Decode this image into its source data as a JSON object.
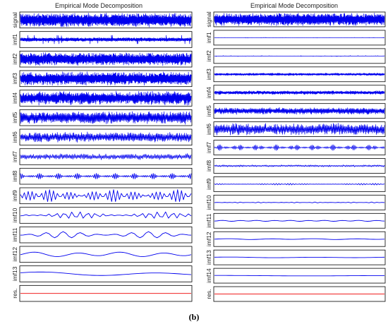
{
  "caption": "(b)",
  "colors": {
    "trace": "#0000ee",
    "residual": "#ee0000",
    "frame": "#000000"
  },
  "chart_data": [
    {
      "type": "line",
      "title": "Empirical Mode Decomposition",
      "rows": [
        {
          "label": "signal",
          "amplitude": 1.0,
          "cycles": 400,
          "envelope": "noise",
          "color": "trace"
        },
        {
          "label": "imf1",
          "amplitude": 0.45,
          "cycles": 360,
          "envelope": "spiky",
          "color": "trace"
        },
        {
          "label": "imf2",
          "amplitude": 0.95,
          "cycles": 320,
          "envelope": "noise",
          "color": "trace"
        },
        {
          "label": "imf3",
          "amplitude": 1.0,
          "cycles": 280,
          "envelope": "noise",
          "color": "trace"
        },
        {
          "label": "imf4",
          "amplitude": 1.0,
          "cycles": 240,
          "envelope": "noise",
          "color": "trace"
        },
        {
          "label": "imf5",
          "amplitude": 0.95,
          "cycles": 200,
          "envelope": "noise",
          "color": "trace"
        },
        {
          "label": "imf6",
          "amplitude": 0.75,
          "cycles": 160,
          "envelope": "noise",
          "color": "trace"
        },
        {
          "label": "imf7",
          "amplitude": 0.45,
          "cycles": 120,
          "envelope": "noise",
          "color": "trace"
        },
        {
          "label": "imf8",
          "amplitude": 0.4,
          "cycles": 90,
          "envelope": "burst",
          "color": "trace"
        },
        {
          "label": "imf9",
          "amplitude": 0.85,
          "cycles": 40,
          "envelope": "grow",
          "color": "trace"
        },
        {
          "label": "imf10",
          "amplitude": 0.5,
          "cycles": 22,
          "envelope": "wave",
          "color": "trace"
        },
        {
          "label": "imf11",
          "amplitude": 0.45,
          "cycles": 10,
          "envelope": "wave",
          "color": "trace"
        },
        {
          "label": "imf12",
          "amplitude": 0.25,
          "cycles": 4,
          "envelope": "smooth",
          "color": "trace"
        },
        {
          "label": "imf13",
          "amplitude": 0.2,
          "cycles": 1.5,
          "envelope": "smooth",
          "color": "trace"
        },
        {
          "label": "res.",
          "amplitude": 0.05,
          "cycles": 0.5,
          "envelope": "flat",
          "color": "residual"
        }
      ]
    },
    {
      "type": "line",
      "title": "Empirical Mode Decomposition",
      "rows": [
        {
          "label": "signal",
          "amplitude": 1.0,
          "cycles": 400,
          "envelope": "noise",
          "color": "trace"
        },
        {
          "label": "imf1",
          "amplitude": 0.05,
          "cycles": 360,
          "envelope": "sparse",
          "color": "trace"
        },
        {
          "label": "imf2",
          "amplitude": 0.08,
          "cycles": 320,
          "envelope": "sparse",
          "color": "trace"
        },
        {
          "label": "imf3",
          "amplitude": 0.2,
          "cycles": 280,
          "envelope": "noise",
          "color": "trace"
        },
        {
          "label": "imf4",
          "amplitude": 0.3,
          "cycles": 240,
          "envelope": "noise",
          "color": "trace"
        },
        {
          "label": "imf5",
          "amplitude": 0.55,
          "cycles": 200,
          "envelope": "noise",
          "color": "trace"
        },
        {
          "label": "imf6",
          "amplitude": 0.95,
          "cycles": 160,
          "envelope": "noise",
          "color": "trace"
        },
        {
          "label": "imf7",
          "amplitude": 0.45,
          "cycles": 120,
          "envelope": "burst",
          "color": "trace"
        },
        {
          "label": "imf8",
          "amplitude": 0.15,
          "cycles": 90,
          "envelope": "noise",
          "color": "trace"
        },
        {
          "label": "imf9",
          "amplitude": 0.12,
          "cycles": 60,
          "envelope": "wave",
          "color": "trace"
        },
        {
          "label": "imf10",
          "amplitude": 0.08,
          "cycles": 30,
          "envelope": "burst",
          "color": "trace"
        },
        {
          "label": "imf11",
          "amplitude": 0.06,
          "cycles": 10,
          "envelope": "smooth",
          "color": "trace"
        },
        {
          "label": "imf12",
          "amplitude": 0.05,
          "cycles": 4,
          "envelope": "smooth",
          "color": "trace"
        },
        {
          "label": "imf13",
          "amplitude": 0.04,
          "cycles": 2,
          "envelope": "smooth",
          "color": "trace"
        },
        {
          "label": "imf14",
          "amplitude": 0.03,
          "cycles": 1,
          "envelope": "smooth",
          "color": "trace"
        },
        {
          "label": "res.",
          "amplitude": 0.02,
          "cycles": 0.5,
          "envelope": "flat",
          "color": "residual"
        }
      ]
    }
  ]
}
